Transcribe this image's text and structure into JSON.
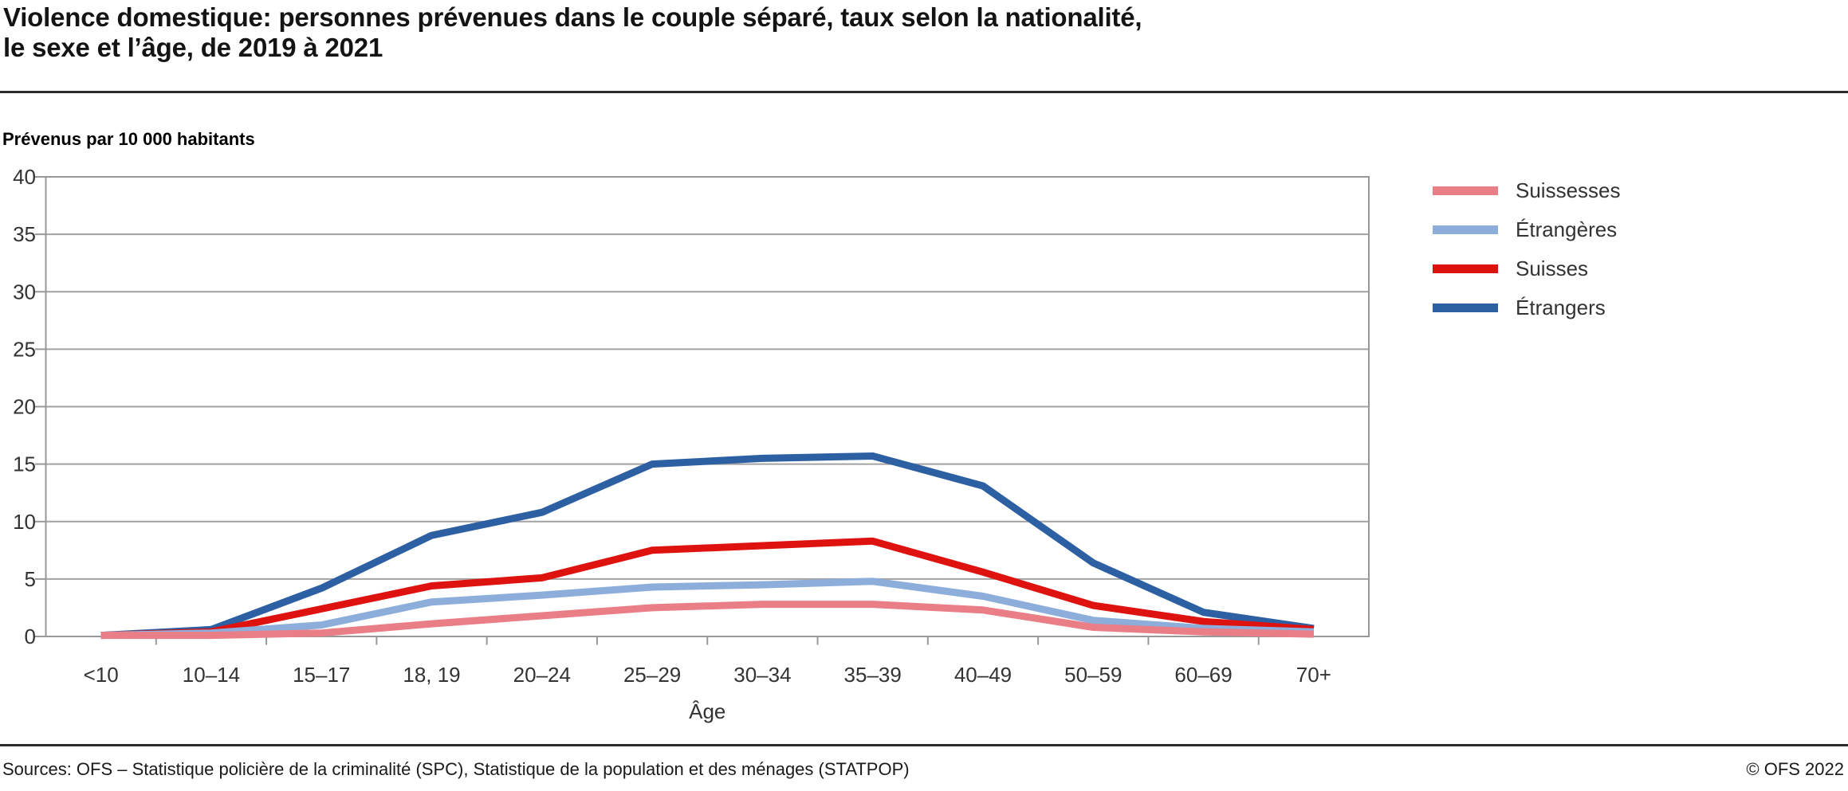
{
  "header": {
    "title": "Violence domestique: personnes prévenues dans le couple séparé, taux selon la nationalité,\nle sexe et l’âge, de 2019 à 2021"
  },
  "chart_data": {
    "type": "line",
    "title": "Violence domestique: personnes prévenues dans le couple séparé, taux selon la nationalité, le sexe et l’âge, de 2019 à 2021",
    "unit_label": "Prévenus par 10 000 habitants",
    "xlabel": "Âge",
    "ylabel": "",
    "ylim": [
      0,
      40
    ],
    "ytick_step": 5,
    "grid": true,
    "legend_position": "right",
    "categories": [
      "<10",
      "10–14",
      "15–17",
      "18, 19",
      "20–24",
      "25–29",
      "30–34",
      "35–39",
      "40–49",
      "50–59",
      "60–69",
      "70+"
    ],
    "series": [
      {
        "name": "Suissesses",
        "color": "#E97E87",
        "values": [
          0.1,
          0.1,
          0.3,
          1.1,
          1.8,
          2.5,
          2.8,
          2.8,
          2.3,
          0.8,
          0.4,
          0.2
        ]
      },
      {
        "name": "Étrangères",
        "color": "#8DADDB",
        "values": [
          0.1,
          0.3,
          1.0,
          3.0,
          3.6,
          4.3,
          4.5,
          4.8,
          3.5,
          1.4,
          0.7,
          0.4
        ]
      },
      {
        "name": "Suisses",
        "color": "#DE1310",
        "values": [
          0.1,
          0.4,
          2.4,
          4.4,
          5.1,
          7.5,
          7.9,
          8.3,
          5.6,
          2.7,
          1.3,
          0.6
        ]
      },
      {
        "name": "Étrangers",
        "color": "#2D5FA3",
        "values": [
          0.1,
          0.6,
          4.2,
          8.8,
          10.8,
          15.0,
          15.5,
          15.7,
          13.1,
          6.4,
          2.1,
          0.7
        ]
      }
    ],
    "style": {
      "grid_color": "#A2A2A2",
      "frame_color": "#989898",
      "line_width": 9
    }
  },
  "footer": {
    "sources": "Sources: OFS – Statistique policière de la criminalité (SPC), Statistique de la population et des ménages (STATPOP)",
    "copyright": "© OFS 2022"
  }
}
